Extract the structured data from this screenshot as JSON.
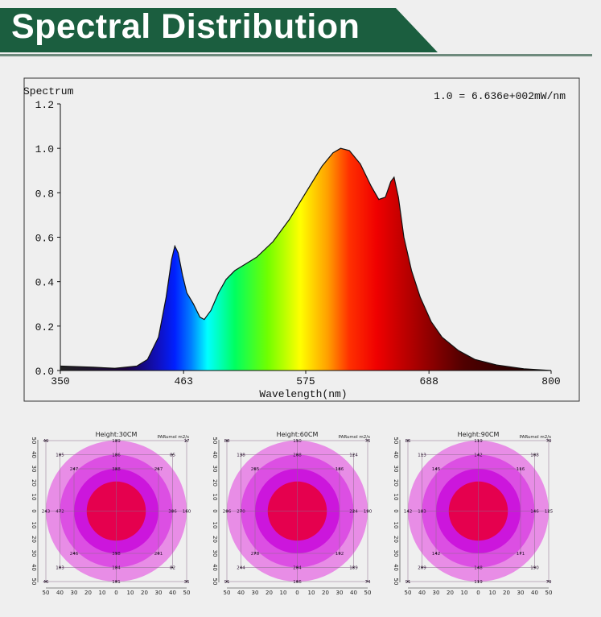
{
  "header": {
    "title": "Spectral Distribution",
    "accent_color": "#1b5e3f"
  },
  "chart_data": {
    "type": "area",
    "ylabel": "Spectrum",
    "xlabel": "Wavelength(nm)",
    "scale_note": "1.0 = 6.636e+002mW/nm",
    "xlim": [
      350,
      800
    ],
    "ylim": [
      0,
      1.2
    ],
    "xticks": [
      "350",
      "463",
      "575",
      "688",
      "800"
    ],
    "yticks": [
      "0.0",
      "0.2",
      "0.4",
      "0.6",
      "0.8",
      "1.0",
      "1.2"
    ],
    "grid": false,
    "x": [
      350,
      380,
      400,
      420,
      430,
      440,
      447,
      452,
      455,
      458,
      462,
      466,
      472,
      478,
      482,
      488,
      495,
      502,
      510,
      520,
      530,
      545,
      560,
      575,
      590,
      600,
      607,
      615,
      625,
      635,
      642,
      648,
      653,
      656,
      660,
      665,
      672,
      680,
      690,
      700,
      715,
      730,
      750,
      775,
      800
    ],
    "y": [
      0.02,
      0.015,
      0.01,
      0.02,
      0.05,
      0.15,
      0.33,
      0.5,
      0.56,
      0.53,
      0.43,
      0.35,
      0.3,
      0.24,
      0.23,
      0.27,
      0.35,
      0.41,
      0.45,
      0.48,
      0.51,
      0.58,
      0.68,
      0.8,
      0.92,
      0.98,
      1.0,
      0.99,
      0.93,
      0.83,
      0.77,
      0.78,
      0.85,
      0.87,
      0.78,
      0.6,
      0.45,
      0.33,
      0.22,
      0.15,
      0.09,
      0.05,
      0.025,
      0.008,
      0.0
    ]
  },
  "par_maps": [
    {
      "title": "Height:30CM",
      "unit": "PARumol m2/s",
      "axis_ticks": [
        "50",
        "40",
        "30",
        "20",
        "10",
        "0",
        "10",
        "20",
        "30",
        "40",
        "50"
      ],
      "points": [
        [
          -50,
          50,
          "49"
        ],
        [
          50,
          50,
          "17"
        ],
        [
          -50,
          -50,
          "46"
        ],
        [
          50,
          -50,
          "35"
        ],
        [
          0,
          50,
          "189"
        ],
        [
          0,
          -50,
          "101"
        ],
        [
          -50,
          0,
          "243"
        ],
        [
          50,
          0,
          "160"
        ],
        [
          -40,
          40,
          "105"
        ],
        [
          40,
          40,
          "85"
        ],
        [
          -40,
          -40,
          "103"
        ],
        [
          40,
          -40,
          "82"
        ],
        [
          -30,
          30,
          "247"
        ],
        [
          30,
          30,
          "267"
        ],
        [
          -30,
          -30,
          "246"
        ],
        [
          30,
          -30,
          "201"
        ],
        [
          -40,
          0,
          "472"
        ],
        [
          40,
          0,
          "386"
        ],
        [
          0,
          40,
          "186"
        ],
        [
          0,
          -40,
          "184"
        ],
        [
          0,
          30,
          "388"
        ],
        [
          0,
          -30,
          "398"
        ]
      ]
    },
    {
      "title": "Height:60CM",
      "unit": "PARumol m2/s",
      "axis_ticks": [
        "50",
        "40",
        "30",
        "20",
        "10",
        "0",
        "10",
        "20",
        "30",
        "40",
        "50"
      ],
      "points": [
        [
          -50,
          50,
          "88"
        ],
        [
          50,
          50,
          "75"
        ],
        [
          -50,
          -50,
          "91"
        ],
        [
          50,
          -50,
          "74"
        ],
        [
          0,
          50,
          "150"
        ],
        [
          0,
          -50,
          "166"
        ],
        [
          -50,
          0,
          "206"
        ],
        [
          50,
          0,
          "190"
        ],
        [
          -40,
          40,
          "138"
        ],
        [
          40,
          40,
          "124"
        ],
        [
          -40,
          -40,
          "244"
        ],
        [
          40,
          -40,
          "189"
        ],
        [
          -30,
          30,
          "265"
        ],
        [
          30,
          30,
          "186"
        ],
        [
          -30,
          -30,
          "278"
        ],
        [
          30,
          -30,
          "192"
        ],
        [
          -40,
          0,
          "270"
        ],
        [
          40,
          0,
          "224"
        ],
        [
          0,
          40,
          "208"
        ],
        [
          0,
          -40,
          "204"
        ]
      ]
    },
    {
      "title": "Height:90CM",
      "unit": "PARumol m2/s",
      "axis_ticks": [
        "50",
        "40",
        "30",
        "20",
        "10",
        "0",
        "10",
        "20",
        "30",
        "40",
        "50"
      ],
      "points": [
        [
          -50,
          50,
          "85"
        ],
        [
          50,
          50,
          "79"
        ],
        [
          -50,
          -50,
          "91"
        ],
        [
          50,
          -50,
          "79"
        ],
        [
          0,
          50,
          "119"
        ],
        [
          0,
          -50,
          "119"
        ],
        [
          -50,
          0,
          "142"
        ],
        [
          50,
          0,
          "125"
        ],
        [
          -40,
          40,
          "113"
        ],
        [
          40,
          40,
          "108"
        ],
        [
          -40,
          -40,
          "209"
        ],
        [
          40,
          -40,
          "190"
        ],
        [
          -30,
          30,
          "145"
        ],
        [
          30,
          30,
          "116"
        ],
        [
          -30,
          -30,
          "142"
        ],
        [
          30,
          -30,
          "171"
        ],
        [
          -40,
          0,
          "183"
        ],
        [
          40,
          0,
          "146"
        ],
        [
          0,
          40,
          "142"
        ],
        [
          0,
          -40,
          "148"
        ]
      ]
    }
  ],
  "ring_colors": [
    "#e88de6",
    "#dc4fe3",
    "#cc16dc",
    "#e5004e"
  ]
}
